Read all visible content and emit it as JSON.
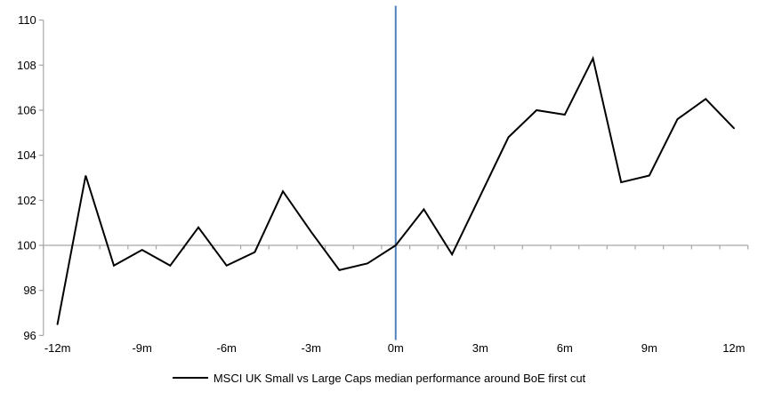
{
  "chart_data": {
    "type": "line",
    "title": "",
    "x": [
      -12,
      -11,
      -10,
      -9,
      -8,
      -7,
      -6,
      -5,
      -4,
      -3,
      -2,
      -1,
      0,
      1,
      2,
      3,
      4,
      5,
      6,
      7,
      8,
      9,
      10,
      11,
      12
    ],
    "series": [
      {
        "name": "MSCI UK Small vs Large Caps median performance around BoE first cut",
        "values": [
          96.5,
          103.1,
          99.1,
          99.8,
          99.1,
          100.8,
          99.1,
          99.7,
          102.4,
          100.6,
          98.9,
          99.2,
          100.0,
          101.6,
          99.6,
          102.2,
          104.8,
          106.0,
          105.8,
          108.3,
          102.8,
          103.1,
          105.6,
          106.5,
          105.2
        ]
      }
    ],
    "x_ticks": [
      {
        "value": -12,
        "label": "-12m"
      },
      {
        "value": -9,
        "label": "-9m"
      },
      {
        "value": -6,
        "label": "-6m"
      },
      {
        "value": -3,
        "label": "-3m"
      },
      {
        "value": 0,
        "label": "0m"
      },
      {
        "value": 3,
        "label": "3m"
      },
      {
        "value": 6,
        "label": "6m"
      },
      {
        "value": 9,
        "label": "9m"
      },
      {
        "value": 12,
        "label": "12m"
      }
    ],
    "y_ticks": [
      96,
      98,
      100,
      102,
      104,
      106,
      108,
      110
    ],
    "ylim": [
      96,
      110
    ],
    "xlim": [
      -12.5,
      12.5
    ],
    "x_axis_crosses_at": 100,
    "event_line_x": 0,
    "grid": "off",
    "legend": {
      "position": "bottom",
      "label": "MSCI UK Small vs Large Caps median performance around BoE first cut"
    },
    "colors": {
      "series_line": "#000000",
      "event_line": "#4F81BD",
      "axis_line": "#A6A6A6",
      "label_text": "#000000"
    }
  }
}
